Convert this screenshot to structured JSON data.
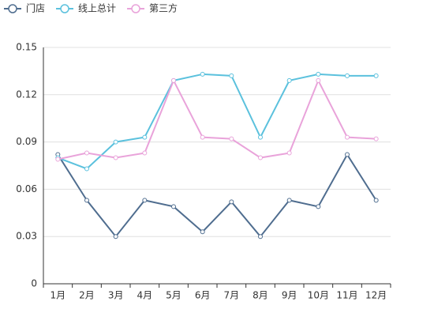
{
  "chart_data": {
    "type": "line",
    "categories": [
      "1月",
      "2月",
      "3月",
      "4月",
      "5月",
      "6月",
      "7月",
      "8月",
      "9月",
      "10月",
      "11月",
      "12月"
    ],
    "series": [
      {
        "name": "门店",
        "color": "#4f6d8f",
        "values": [
          0.082,
          0.053,
          0.03,
          0.053,
          0.049,
          0.033,
          0.052,
          0.03,
          0.053,
          0.049,
          0.082,
          0.053
        ]
      },
      {
        "name": "线上总计",
        "color": "#5bc1dd",
        "values": [
          0.08,
          0.073,
          0.09,
          0.093,
          0.129,
          0.133,
          0.132,
          0.093,
          0.129,
          0.133,
          0.132,
          0.132
        ]
      },
      {
        "name": "第三方",
        "color": "#e9a3da",
        "values": [
          0.079,
          0.083,
          0.08,
          0.083,
          0.129,
          0.093,
          0.092,
          0.08,
          0.083,
          0.129,
          0.093,
          0.092
        ]
      }
    ],
    "ylim": [
      0,
      0.15
    ],
    "yticks": [
      0,
      0.03,
      0.06,
      0.09,
      0.12,
      0.15
    ],
    "grid": true,
    "legend": "top-left"
  }
}
